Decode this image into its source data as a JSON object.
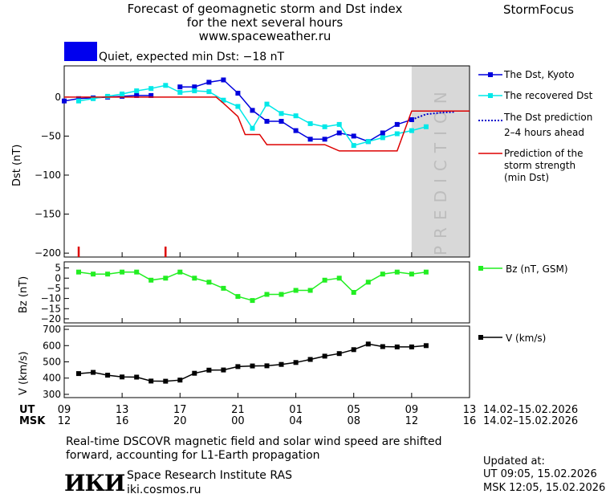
{
  "header": {
    "title_line1": "Forecast of geomagnetic storm and Dst index",
    "title_line2": "for the next several hours",
    "title_line3": "www.spaceweather.ru",
    "brand": "StormFocus",
    "status_text": "Quiet, expected min Dst: −18 nT",
    "status_color": "#0000ee"
  },
  "panel_labels": {
    "dst_ylabel": "Dst (nT)",
    "bz_ylabel": "Bz (nT)",
    "v_ylabel": "V (km/s)",
    "prediction_word": "PREDICTION"
  },
  "legend": {
    "dst_kyoto": "The Dst, Kyoto",
    "dst_recovered": "The recovered Dst",
    "dst_prediction_1": "The Dst prediction",
    "dst_prediction_2": "2–4 hours ahead",
    "strength_1": "Prediction of the",
    "strength_2": "storm strength",
    "strength_3": "(min Dst)",
    "bz": "Bz (nT, GSM)",
    "v": "V (km/s)"
  },
  "time_axis": {
    "ut_label": "UT",
    "msk_label": "MSK",
    "ut_ticks": [
      "09",
      "13",
      "17",
      "21",
      "01",
      "05",
      "09",
      "13"
    ],
    "msk_ticks": [
      "12",
      "16",
      "20",
      "00",
      "04",
      "08",
      "12",
      "16"
    ],
    "date_range_ut": "14.02–15.02.2026",
    "date_range_msk": "14.02–15.02.2026"
  },
  "footer": {
    "note_line1": "Real-time DSCOVR magnetic field and solar wind speed are shifted",
    "note_line2": "forward, accounting for L1-Earth propagation",
    "logo_text": "ИКИ",
    "institute": "Space Research Institute RAS",
    "site": "iki.cosmos.ru",
    "updated_label": "Updated at:",
    "updated_ut": "UT   09:05, 15.02.2026",
    "updated_msk": "MSK 12:05, 15.02.2026"
  },
  "colors": {
    "dst_kyoto": "#0000dd",
    "dst_recovered": "#00e8e8",
    "prediction": "#0000cc",
    "strength": "#dd0000",
    "bz": "#22ee22",
    "v": "#000000",
    "prediction_zone": "#d8d8d8"
  },
  "chart_data": [
    {
      "type": "line",
      "panel": "dst",
      "xlabel": "",
      "ylabel": "Dst (nT)",
      "x_unit": "hours from 09 UT 14.02",
      "xlim": [
        0,
        28
      ],
      "ylim": [
        -205,
        40
      ],
      "yticks": [
        0,
        -50,
        -100,
        -150,
        -200
      ],
      "prediction_start_x": 24,
      "series": [
        {
          "name": "The Dst, Kyoto",
          "x": [
            0,
            1,
            2,
            3,
            4,
            5,
            6,
            7,
            8,
            9,
            10,
            11,
            12,
            13,
            14,
            15,
            16,
            17,
            18,
            19,
            20,
            21,
            22,
            23,
            24
          ],
          "y": [
            -5,
            -2,
            -1,
            0,
            1,
            2,
            2,
            null,
            13,
            13,
            19,
            22,
            5,
            -17,
            -31,
            -31,
            -43,
            -54,
            -54,
            -46,
            -50,
            -57,
            -46,
            -35,
            -29
          ]
        },
        {
          "name": "The recovered Dst",
          "x": [
            1,
            2,
            3,
            4,
            5,
            6,
            7,
            8,
            9,
            10,
            11,
            12,
            13,
            14,
            15,
            16,
            17,
            18,
            19,
            20,
            21,
            22,
            23,
            24,
            25
          ],
          "y": [
            -5,
            -2,
            1,
            4,
            8,
            11,
            15,
            6,
            8,
            7,
            -4,
            -12,
            -40,
            -9,
            -21,
            -24,
            -34,
            -38,
            -35,
            -62,
            -57,
            -52,
            -47,
            -43,
            -38
          ]
        },
        {
          "name": "The Dst prediction 2–4 hours ahead",
          "x": [
            24,
            25,
            26,
            27
          ],
          "y": [
            -29,
            -22,
            -20,
            -19
          ]
        },
        {
          "name": "Prediction of the storm strength (min Dst)",
          "step": true,
          "x": [
            0,
            10.5,
            11,
            12,
            12.5,
            13.5,
            14,
            15,
            16,
            17,
            18,
            19,
            20,
            21,
            22,
            23,
            24,
            25,
            26,
            27,
            28
          ],
          "y": [
            0,
            0,
            -8,
            -25,
            -48,
            -48,
            -61,
            -61,
            -61,
            -61,
            -61,
            -69,
            -69,
            -69,
            -69,
            -69,
            -18,
            -18,
            -18,
            -18,
            -18
          ]
        }
      ],
      "markers_at_x": [
        1,
        7
      ]
    },
    {
      "type": "line",
      "panel": "bz",
      "xlabel": "",
      "ylabel": "Bz (nT)",
      "xlim": [
        0,
        28
      ],
      "ylim": [
        -22,
        8
      ],
      "yticks": [
        5,
        0,
        -5,
        -10,
        -15,
        -20
      ],
      "series": [
        {
          "name": "Bz (nT, GSM)",
          "x": [
            1,
            2,
            3,
            4,
            5,
            6,
            7,
            8,
            9,
            10,
            11,
            12,
            13,
            14,
            15,
            16,
            17,
            18,
            19,
            20,
            21,
            22,
            23,
            24,
            25
          ],
          "y": [
            3,
            2,
            2,
            3,
            3,
            -1,
            0,
            3,
            0,
            -2,
            -5,
            -9,
            -11,
            -8,
            -8,
            -6,
            -6,
            -1,
            0,
            -7,
            -2,
            2,
            3,
            2,
            3
          ]
        }
      ]
    },
    {
      "type": "line",
      "panel": "v",
      "xlabel": "",
      "ylabel": "V (km/s)",
      "xlim": [
        0,
        28
      ],
      "ylim": [
        280,
        720
      ],
      "yticks": [
        300,
        400,
        500,
        600,
        700
      ],
      "series": [
        {
          "name": "V (km/s)",
          "x": [
            1,
            2,
            3,
            4,
            5,
            6,
            7,
            8,
            9,
            10,
            11,
            12,
            13,
            14,
            15,
            16,
            17,
            18,
            19,
            20,
            21,
            22,
            23,
            24,
            25
          ],
          "y": [
            428,
            435,
            418,
            407,
            406,
            382,
            381,
            388,
            430,
            449,
            450,
            471,
            475,
            476,
            484,
            496,
            515,
            535,
            551,
            575,
            610,
            594,
            592,
            592,
            600
          ]
        }
      ]
    }
  ]
}
